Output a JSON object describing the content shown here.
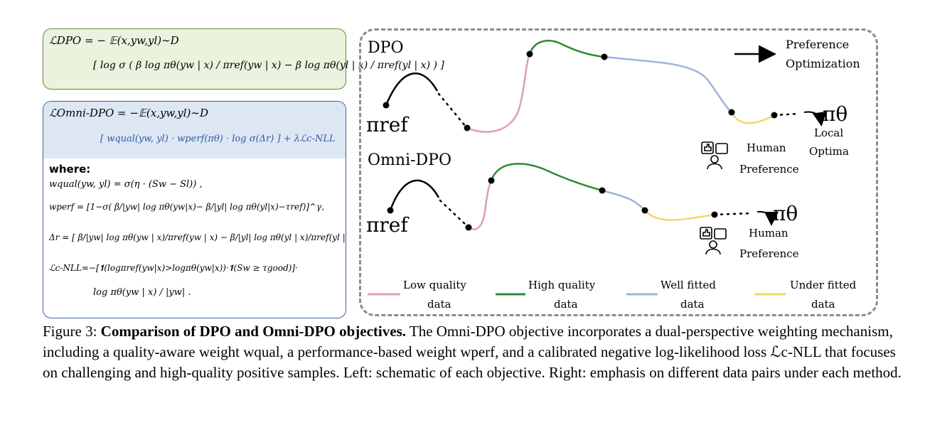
{
  "dpo_box": {
    "line1": "ℒDPO = − 𝔼(x,yw,yl)∼D",
    "line2": "[ log σ ( β log πθ(yw | x) / πref(yw | x) − β log πθ(yl | x) / πref(yl | x) ) ]"
  },
  "omni_box": {
    "line1": "ℒOmni-DPO = −𝔼(x,yw,yl)∼D",
    "line2_part": "[ wqual(yw, yl) · wperf(πθ) · log σ(Δr) ] + λℒc-NLL",
    "where_label": "where:",
    "w_qual": "wqual(yw, yl) = σ(η · (Sw − Sl)) ,",
    "w_perf": "wperf = [1−σ( β/|yw| log πθ(yw|x)− β/|yl| log πθ(yl|x)−τref)]^γ,",
    "delta_r": "Δr = [ β/|yw| log πθ(yw | x)/πref(yw | x) − β/|yl| log πθ(yl | x)/πref(yl | x) ],",
    "c_nll_a": "ℒc-NLL=−[𝟏(logπref(yw|x)>logπθ(yw|x))·𝟏(Sw ≥ τgood)]·",
    "c_nll_b": "log πθ(yw | x) / |yw| ."
  },
  "diagram": {
    "dpo_label": "DPO",
    "omni_label": "Omni-DPO",
    "pi_ref": "πref",
    "pi_theta": "πθ",
    "pref_opt_line1": "Preference",
    "pref_opt_line2": "Optimization",
    "local_line1": "Local",
    "local_line2": "Optima",
    "human_line1": "Human",
    "human_line2": "Preference",
    "legend": [
      {
        "line1": "Low quality",
        "line2": "data",
        "color": "#e0a0a6"
      },
      {
        "line1": "High quality",
        "line2": "data",
        "color": "#2e8b2e"
      },
      {
        "line1": "Well fitted",
        "line2": "data",
        "color": "#9db4dc"
      },
      {
        "line1": "Under fitted",
        "line2": "data",
        "color": "#f3d66e"
      }
    ]
  },
  "caption": {
    "prefix": "Figure 3: ",
    "bold": "Comparison of DPO and Omni-DPO objectives.",
    "body": " The Omni-DPO objective incorporates a dual-perspective weighting mechanism, including a quality-aware weight wqual, a performance-based weight wperf, and a calibrated negative log-likelihood loss ℒc-NLL that focuses on challenging and high-quality positive samples. Left: schematic of each objective. Right: emphasis on different data pairs under each method."
  }
}
